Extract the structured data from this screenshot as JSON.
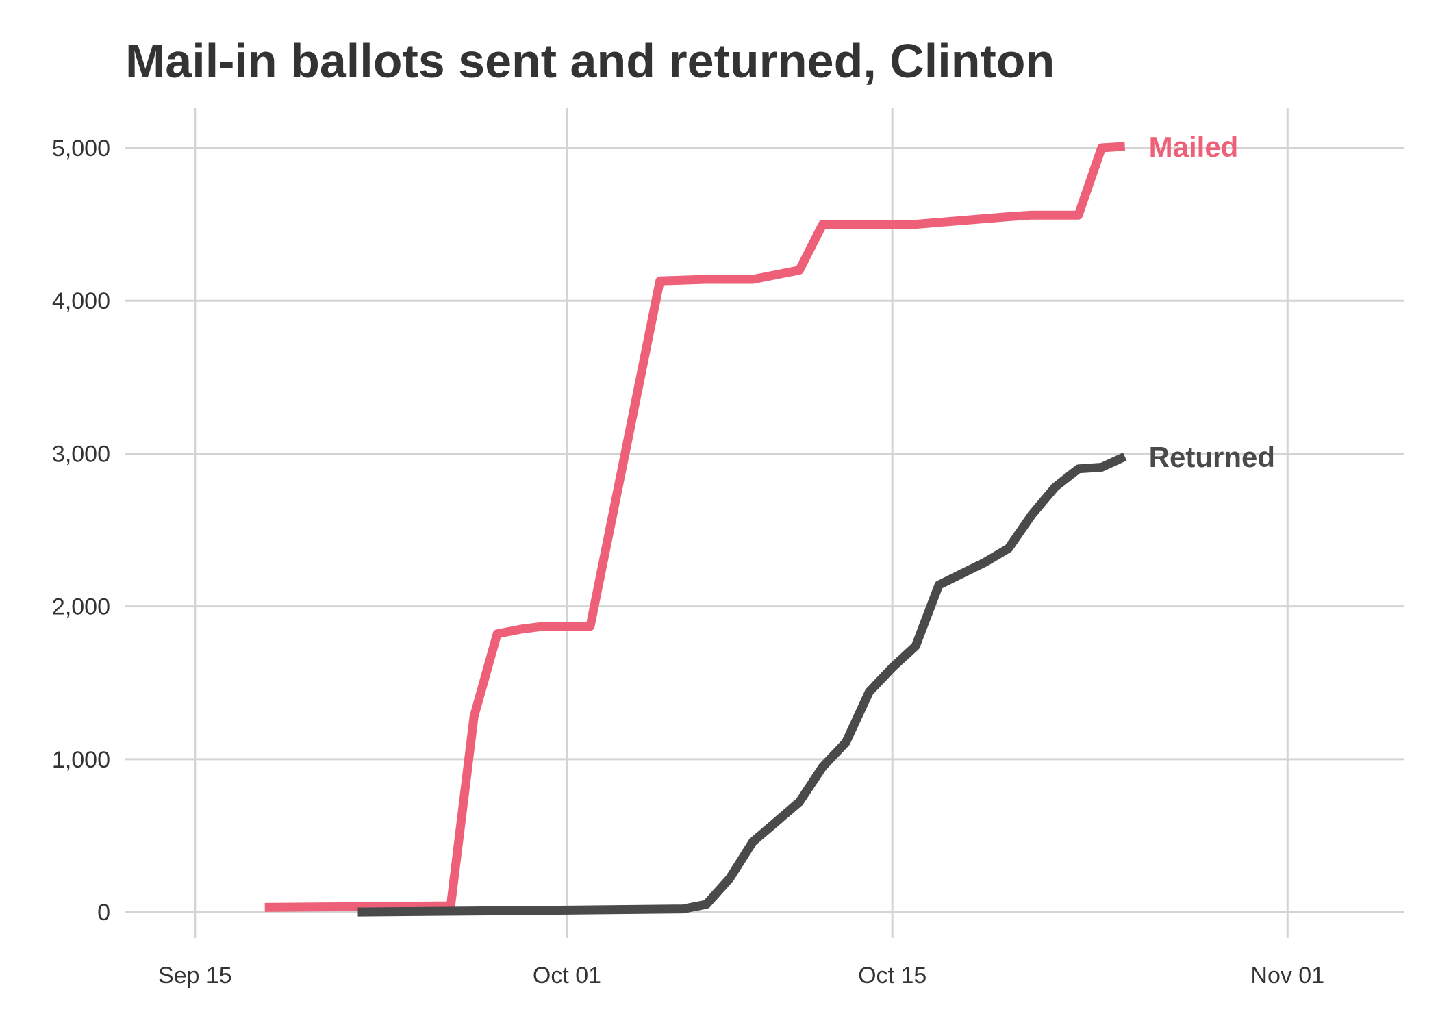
{
  "chart_data": {
    "type": "line",
    "title": "Mail-in ballots sent and returned, Clinton",
    "xlabel": "",
    "ylabel": "",
    "xlim": [
      "2024-09-12",
      "2024-11-06"
    ],
    "ylim": [
      -170,
      5260
    ],
    "grid": true,
    "legend": "direct-labels-right",
    "x_ticks": [
      {
        "date": "2024-09-15",
        "label": "Sep 15"
      },
      {
        "date": "2024-10-01",
        "label": "Oct 01"
      },
      {
        "date": "2024-10-15",
        "label": "Oct 15"
      },
      {
        "date": "2024-11-01",
        "label": "Nov 01"
      }
    ],
    "y_ticks": [
      {
        "value": 0,
        "label": "0"
      },
      {
        "value": 1000,
        "label": "1,000"
      },
      {
        "value": 2000,
        "label": "2,000"
      },
      {
        "value": 3000,
        "label": "3,000"
      },
      {
        "value": 4000,
        "label": "4,000"
      },
      {
        "value": 5000,
        "label": "5,000"
      }
    ],
    "series": [
      {
        "name": "Mailed",
        "color": "#ee6078",
        "points": [
          [
            "2024-09-18",
            30
          ],
          [
            "2024-09-26",
            40
          ],
          [
            "2024-09-27",
            1280
          ],
          [
            "2024-09-28",
            1820
          ],
          [
            "2024-09-29",
            1850
          ],
          [
            "2024-09-30",
            1870
          ],
          [
            "2024-10-01",
            1870
          ],
          [
            "2024-10-02",
            1870
          ],
          [
            "2024-10-05",
            4130
          ],
          [
            "2024-10-07",
            4140
          ],
          [
            "2024-10-09",
            4140
          ],
          [
            "2024-10-11",
            4200
          ],
          [
            "2024-10-12",
            4500
          ],
          [
            "2024-10-16",
            4500
          ],
          [
            "2024-10-20",
            4550
          ],
          [
            "2024-10-21",
            4560
          ],
          [
            "2024-10-23",
            4560
          ],
          [
            "2024-10-24",
            5000
          ],
          [
            "2024-10-25",
            5010
          ]
        ]
      },
      {
        "name": "Returned",
        "color": "#4a4a4a",
        "points": [
          [
            "2024-09-22",
            0
          ],
          [
            "2024-09-30",
            10
          ],
          [
            "2024-10-06",
            20
          ],
          [
            "2024-10-07",
            50
          ],
          [
            "2024-10-08",
            220
          ],
          [
            "2024-10-09",
            460
          ],
          [
            "2024-10-10",
            590
          ],
          [
            "2024-10-11",
            720
          ],
          [
            "2024-10-12",
            950
          ],
          [
            "2024-10-13",
            1110
          ],
          [
            "2024-10-14",
            1440
          ],
          [
            "2024-10-15",
            1600
          ],
          [
            "2024-10-16",
            1740
          ],
          [
            "2024-10-17",
            2140
          ],
          [
            "2024-10-19",
            2290
          ],
          [
            "2024-10-20",
            2380
          ],
          [
            "2024-10-21",
            2600
          ],
          [
            "2024-10-22",
            2780
          ],
          [
            "2024-10-23",
            2900
          ],
          [
            "2024-10-24",
            2910
          ],
          [
            "2024-10-25",
            2980
          ]
        ]
      }
    ]
  }
}
